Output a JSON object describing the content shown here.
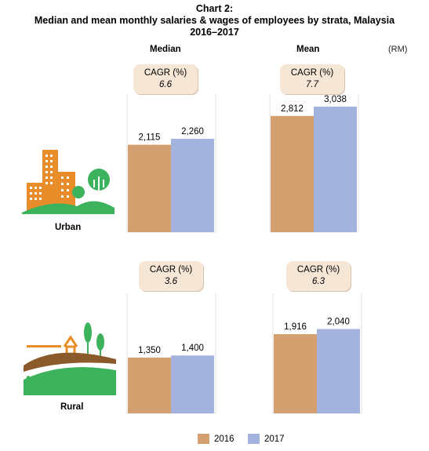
{
  "title_line1": "Chart 2:",
  "title_line2": "Median and mean monthly salaries & wages of employees by strata, Malaysia",
  "title_line3": "2016–2017",
  "unit": "(RM)",
  "legend": [
    {
      "label": "2016",
      "color": "#d4a070"
    },
    {
      "label": "2017",
      "color": "#a3b3de"
    }
  ],
  "chart_data": {
    "type": "bar",
    "title": "Median and mean monthly salaries & wages of employees by strata, Malaysia 2016–2017",
    "unit": "(RM)",
    "columns": [
      "Median",
      "Mean"
    ],
    "strata": [
      "Urban",
      "Rural"
    ],
    "series_names": [
      "2016",
      "2017"
    ],
    "panels": [
      {
        "stratum": "Urban",
        "measure": "Median",
        "values": [
          2115,
          2260
        ],
        "labels": [
          "2,115",
          "2,260"
        ],
        "cagr_label": "CAGR (%)",
        "cagr": "6.6"
      },
      {
        "stratum": "Urban",
        "measure": "Mean",
        "values": [
          2812,
          3038
        ],
        "labels": [
          "2,812",
          "3,038"
        ],
        "cagr_label": "CAGR (%)",
        "cagr": "7.7"
      },
      {
        "stratum": "Rural",
        "measure": "Median",
        "values": [
          1350,
          1400
        ],
        "labels": [
          "1,350",
          "1,400"
        ],
        "cagr_label": "CAGR (%)",
        "cagr": "3.6"
      },
      {
        "stratum": "Rural",
        "measure": "Mean",
        "values": [
          1916,
          2040
        ],
        "labels": [
          "1,916",
          "2,040"
        ],
        "cagr_label": "CAGR (%)",
        "cagr": "6.3"
      }
    ]
  }
}
